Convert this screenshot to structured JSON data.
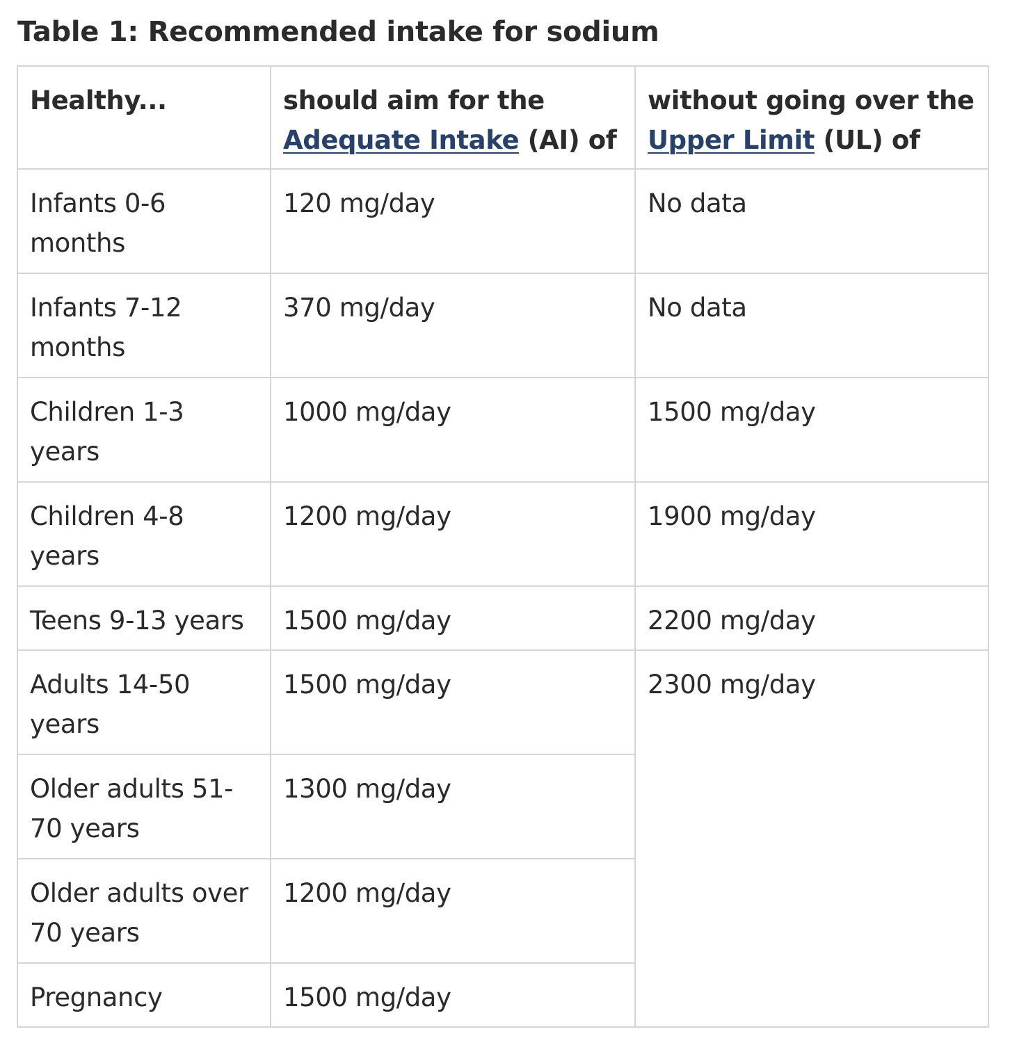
{
  "title": "Table 1: Recommended intake for sodium",
  "header": {
    "col1": "Healthy...",
    "col2_pre": "should aim for the ",
    "col2_link": "Adequate Intake",
    "col2_post": " (AI) of",
    "col3_pre": "without going over the ",
    "col3_link": "Upper Limit",
    "col3_post": " (UL) of"
  },
  "rows": [
    {
      "group": "Infants 0-6 months",
      "ai": "120 mg/day",
      "ul": "No data"
    },
    {
      "group": "Infants 7-12 months",
      "ai": "370 mg/day",
      "ul": "No data"
    },
    {
      "group": "Children 1-3 years",
      "ai": "1000 mg/day",
      "ul": "1500 mg/day"
    },
    {
      "group": "Children 4-8 years",
      "ai": "1200 mg/day",
      "ul": "1900 mg/day"
    },
    {
      "group": "Teens 9-13 years",
      "ai": "1500 mg/day",
      "ul": "2200 mg/day"
    },
    {
      "group": "Adults 14-50 years",
      "ai": "1500 mg/day",
      "ul": "2300 mg/day"
    },
    {
      "group": "Older adults 51-70 years",
      "ai": "1300 mg/day"
    },
    {
      "group": "Older adults over 70 years",
      "ai": "1200 mg/day"
    },
    {
      "group": "Pregnancy",
      "ai": "1500 mg/day"
    }
  ]
}
